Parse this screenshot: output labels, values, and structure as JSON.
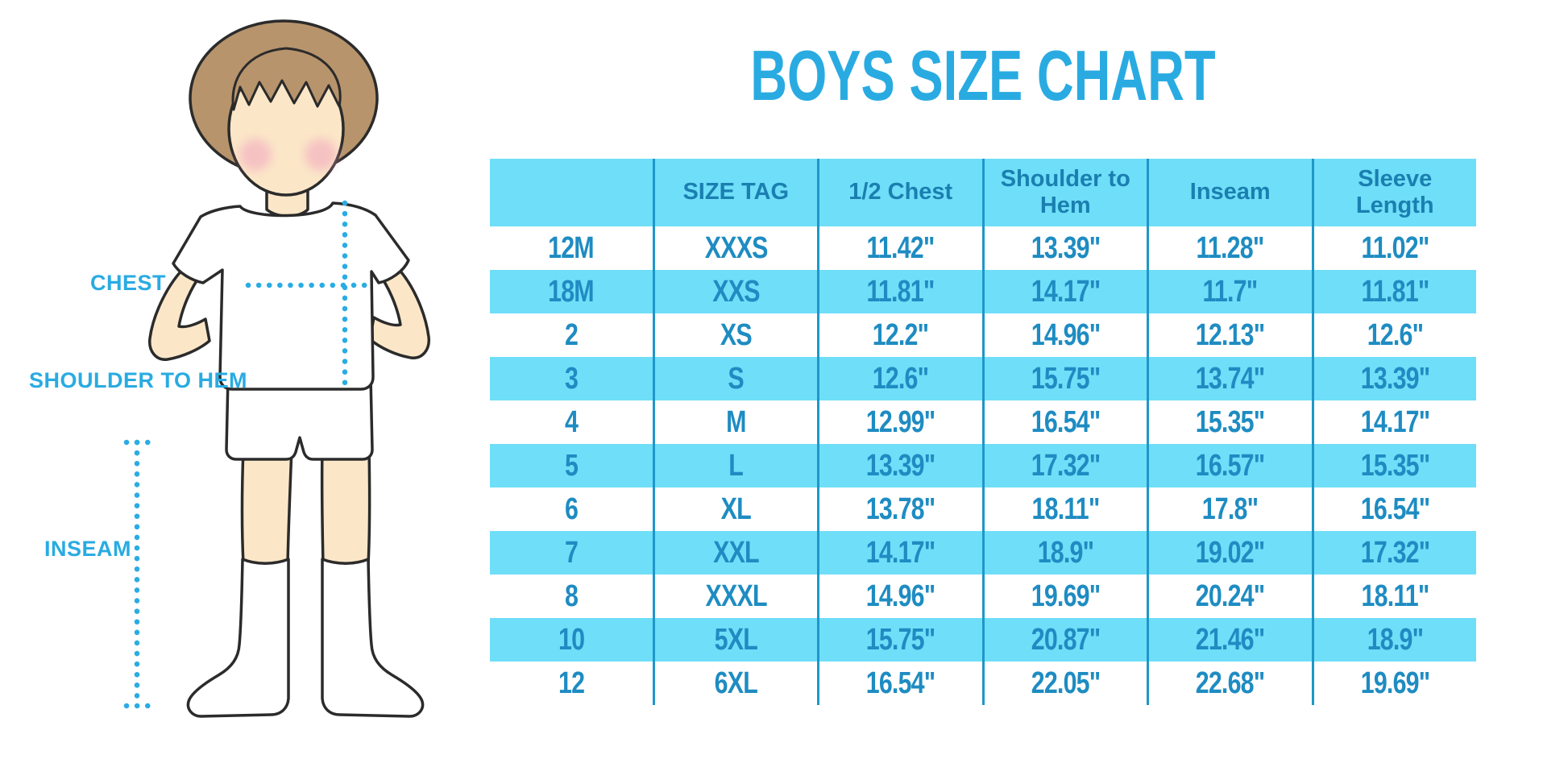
{
  "chart_data": {
    "type": "table",
    "title": "BOYS SIZE CHART",
    "columns": [
      "",
      "SIZE TAG",
      "1/2 Chest",
      "Shoulder to Hem",
      "Inseam",
      "Sleeve Length"
    ],
    "rows": [
      [
        "12M",
        "XXXS",
        "11.42\"",
        "13.39\"",
        "11.28\"",
        "11.02\""
      ],
      [
        "18M",
        "XXS",
        "11.81\"",
        "14.17\"",
        "11.7\"",
        "11.81\""
      ],
      [
        "2",
        "XS",
        "12.2\"",
        "14.96\"",
        "12.13\"",
        "12.6\""
      ],
      [
        "3",
        "S",
        "12.6\"",
        "15.75\"",
        "13.74\"",
        "13.39\""
      ],
      [
        "4",
        "M",
        "12.99\"",
        "16.54\"",
        "15.35\"",
        "14.17\""
      ],
      [
        "5",
        "L",
        "13.39\"",
        "17.32\"",
        "16.57\"",
        "15.35\""
      ],
      [
        "6",
        "XL",
        "13.78\"",
        "18.11\"",
        "17.8\"",
        "16.54\""
      ],
      [
        "7",
        "XXL",
        "14.17\"",
        "18.9\"",
        "19.02\"",
        "17.32\""
      ],
      [
        "8",
        "XXXL",
        "14.96\"",
        "19.69\"",
        "20.24\"",
        "18.11\""
      ],
      [
        "10",
        "5XL",
        "15.75\"",
        "20.87\"",
        "21.46\"",
        "18.9\""
      ],
      [
        "12",
        "6XL",
        "16.54\"",
        "22.05\"",
        "22.68\"",
        "19.69\""
      ]
    ],
    "layout": {
      "alternating_row_fill": "#6FDEF8",
      "header_fill": "#6FDEF8",
      "first_row_fill": "#FFFFFF"
    }
  },
  "measure_labels": {
    "chest": "CHEST",
    "shoulder_to_hem": "SHOULDER TO HEM",
    "inseam": "INSEAM"
  },
  "colors": {
    "accent_blue": "#29ABE2",
    "table_fill": "#6FDEF8",
    "header_text": "#1A7FB0",
    "cell_text": "#1E8CC2",
    "divider": "#1E97C9",
    "dotted_line": "#2AACE3",
    "hair": "#B7946C",
    "skin": "#FBE7C8",
    "blush": "#F2A9BF",
    "outline": "#2B2B2B"
  }
}
